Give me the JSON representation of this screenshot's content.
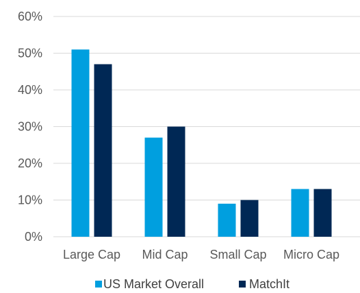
{
  "chart_data": {
    "type": "bar",
    "categories": [
      "Large Cap",
      "Mid Cap",
      "Small Cap",
      "Micro Cap"
    ],
    "series": [
      {
        "name": "US Market Overall",
        "values": [
          51,
          27,
          9,
          13
        ],
        "color": "#009fdf"
      },
      {
        "name": "MatchIt",
        "values": [
          47,
          30,
          10,
          13
        ],
        "color": "#002855"
      }
    ],
    "y_ticks": [
      "0%",
      "10%",
      "20%",
      "30%",
      "40%",
      "50%",
      "60%"
    ],
    "ylim": [
      0,
      60
    ],
    "grid": true,
    "legend_placement": "bottom",
    "title": "",
    "xlabel": "",
    "ylabel": ""
  }
}
